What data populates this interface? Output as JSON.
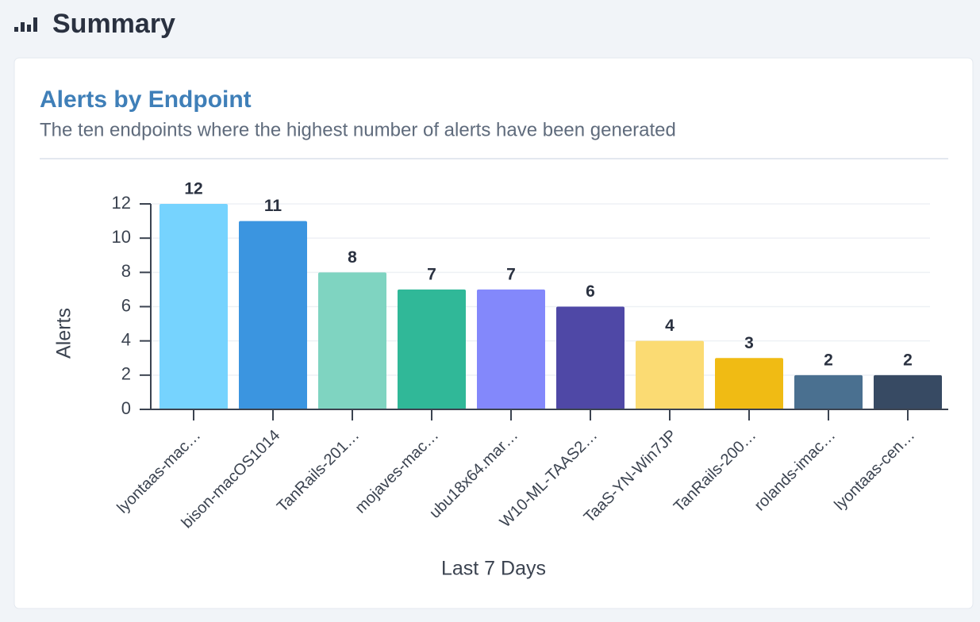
{
  "header": {
    "title": "Summary"
  },
  "chart_data": {
    "type": "bar",
    "title": "Alerts by Endpoint",
    "subtitle": "The ten endpoints where the highest number of alerts have been generated",
    "x_label": "Last 7 Days",
    "y_label": "Alerts",
    "categories": [
      "lyontaas-mac…",
      "bison-macOS1014",
      "TanRails-201…",
      "mojaves-mac…",
      "ubu18x64.mar…",
      "W10-ML-TAAS2…",
      "TaaS-YN-Win7JP",
      "TanRails-200…",
      "rolands-imac…",
      "lyontaas-cen…"
    ],
    "values": [
      12,
      11,
      8,
      7,
      7,
      6,
      4,
      3,
      2,
      2
    ],
    "colors": [
      "#76d3fe",
      "#3b95e0",
      "#7fd4c1",
      "#30b898",
      "#8388fb",
      "#4f48a6",
      "#fbdb73",
      "#f0bb14",
      "#4a7090",
      "#374a63"
    ],
    "ylim": [
      0,
      12
    ],
    "yticks": [
      0,
      2,
      4,
      6,
      8,
      10,
      12
    ],
    "grid": true
  }
}
